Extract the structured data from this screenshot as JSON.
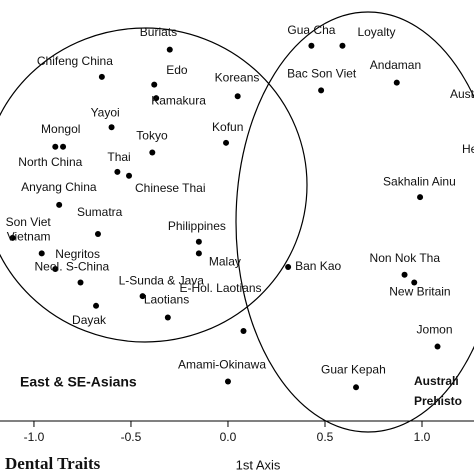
{
  "chart_data": {
    "type": "scatter",
    "title": "Dental Traits",
    "xlabel": "1st Axis",
    "xlim": [
      -1.175,
      1.268
    ],
    "ylim": [
      -0.85,
      1.366
    ],
    "xticks": [
      {
        "value": -1.0,
        "label": "-1.0"
      },
      -0.5,
      {
        "value": 0.0,
        "label": "0.0"
      },
      0.5,
      {
        "value": 1.0,
        "label": "1.0"
      }
    ],
    "color": "#000000",
    "labels": [
      "Buriats",
      "Chifeng China",
      "Edo",
      "Kamakura",
      "Koreans",
      "Yayoi",
      "Mongol",
      "North China",
      "Tokyo",
      "Kofun",
      "Thai",
      "Chinese Thai",
      "Anyang China",
      "Sumatra",
      "Son Viet",
      "Vietnam",
      "Philippines",
      "Malay",
      "Negritos",
      "Neol. S-China",
      "L-Sunda & Java",
      "Dayak",
      "Laotians",
      "E-Hol. Laotians",
      "Ban Kao",
      "Amami-Okinawa",
      "Gua Cha",
      "Loyalty",
      "Bac Son Viet",
      "Andaman",
      "Sakhalin Ainu",
      "Non Nok Tha",
      "New Britain",
      "Jomon",
      "Guar Kepah"
    ],
    "x": [
      -0.3,
      -0.65,
      -0.38,
      -0.37,
      0.05,
      -0.6,
      -0.85,
      -0.89,
      -0.39,
      -0.01,
      -0.57,
      -0.51,
      -0.87,
      -0.67,
      -1.11,
      -0.96,
      -0.15,
      -0.15,
      -0.89,
      -0.76,
      -0.44,
      -0.68,
      -0.31,
      0.08,
      0.31,
      0.0,
      0.43,
      0.59,
      0.48,
      0.87,
      0.99,
      0.91,
      0.96,
      1.08,
      0.66
    ],
    "values": [
      1.11,
      0.97,
      0.93,
      0.86,
      0.87,
      0.71,
      0.61,
      0.61,
      0.58,
      0.63,
      0.48,
      0.46,
      0.31,
      0.16,
      0.14,
      0.06,
      0.12,
      0.06,
      -0.02,
      -0.09,
      -0.16,
      -0.21,
      -0.27,
      -0.34,
      -0.01,
      -0.6,
      1.13,
      1.13,
      0.9,
      0.94,
      0.35,
      -0.05,
      -0.09,
      -0.42,
      -0.63
    ],
    "annotations": [
      "East & SE-Asians",
      "Aust",
      "He",
      "Australi",
      "Prehisto"
    ]
  }
}
